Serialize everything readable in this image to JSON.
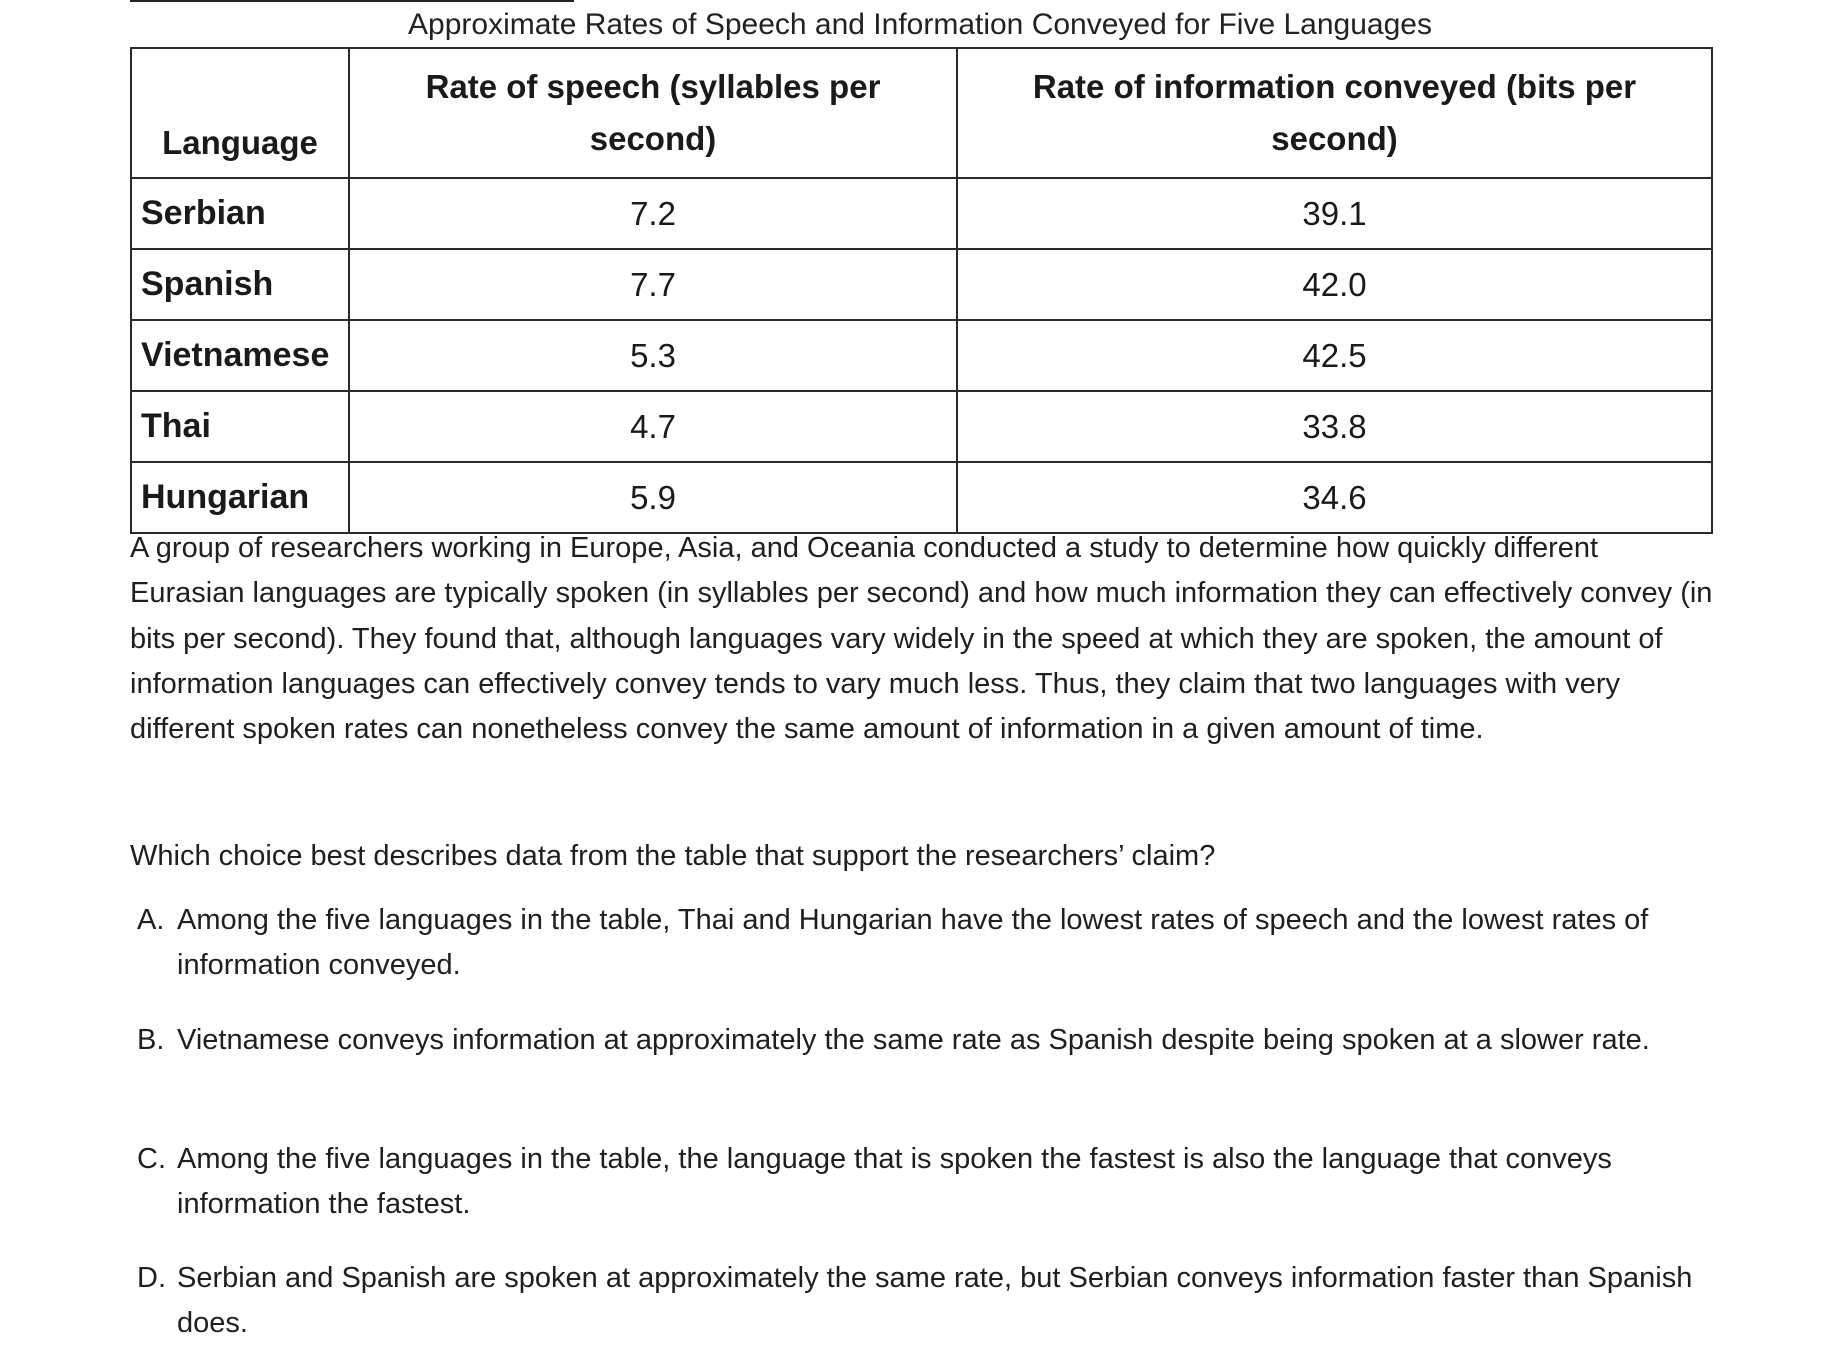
{
  "table": {
    "caption": "Approximate Rates of Speech and Information Conveyed for Five Languages",
    "headers": {
      "language": "Language",
      "speech": "Rate of speech (syllables per second)",
      "info": "Rate of information conveyed (bits per second)"
    },
    "rows": [
      {
        "language": "Serbian",
        "speech": "7.2",
        "info": "39.1"
      },
      {
        "language": "Spanish",
        "speech": "7.7",
        "info": "42.0"
      },
      {
        "language": "Vietnamese",
        "speech": "5.3",
        "info": "42.5"
      },
      {
        "language": "Thai",
        "speech": "4.7",
        "info": "33.8"
      },
      {
        "language": "Hungarian",
        "speech": "5.9",
        "info": "34.6"
      }
    ]
  },
  "passage": "A group of researchers working in Europe, Asia, and Oceania conducted a study to determine how quickly different Eurasian languages are typically spoken (in syllables per second) and how much information they can effectively convey (in bits per second). They found that, although languages vary widely in the speed at which they are spoken, the amount of information languages can effectively convey tends to vary much less. Thus, they claim that two languages with very different spoken rates can nonetheless convey the same amount of information in a given amount of time.",
  "question": "Which choice best describes data from the table that support the researchers’ claim?",
  "choices": [
    {
      "letter": "A.",
      "text": "Among the five languages in the table, Thai and Hungarian have the lowest rates of speech and the lowest rates of information conveyed."
    },
    {
      "letter": "B.",
      "text": "Vietnamese conveys information at approximately the same rate as Spanish despite being spoken at a slower rate."
    },
    {
      "letter": "C.",
      "text": "Among the five languages in the table, the language that is spoken the fastest is also the language that conveys information the fastest."
    },
    {
      "letter": "D.",
      "text": "Serbian and Spanish are spoken at approximately the same rate, but Serbian conveys information faster than Spanish does."
    }
  ]
}
